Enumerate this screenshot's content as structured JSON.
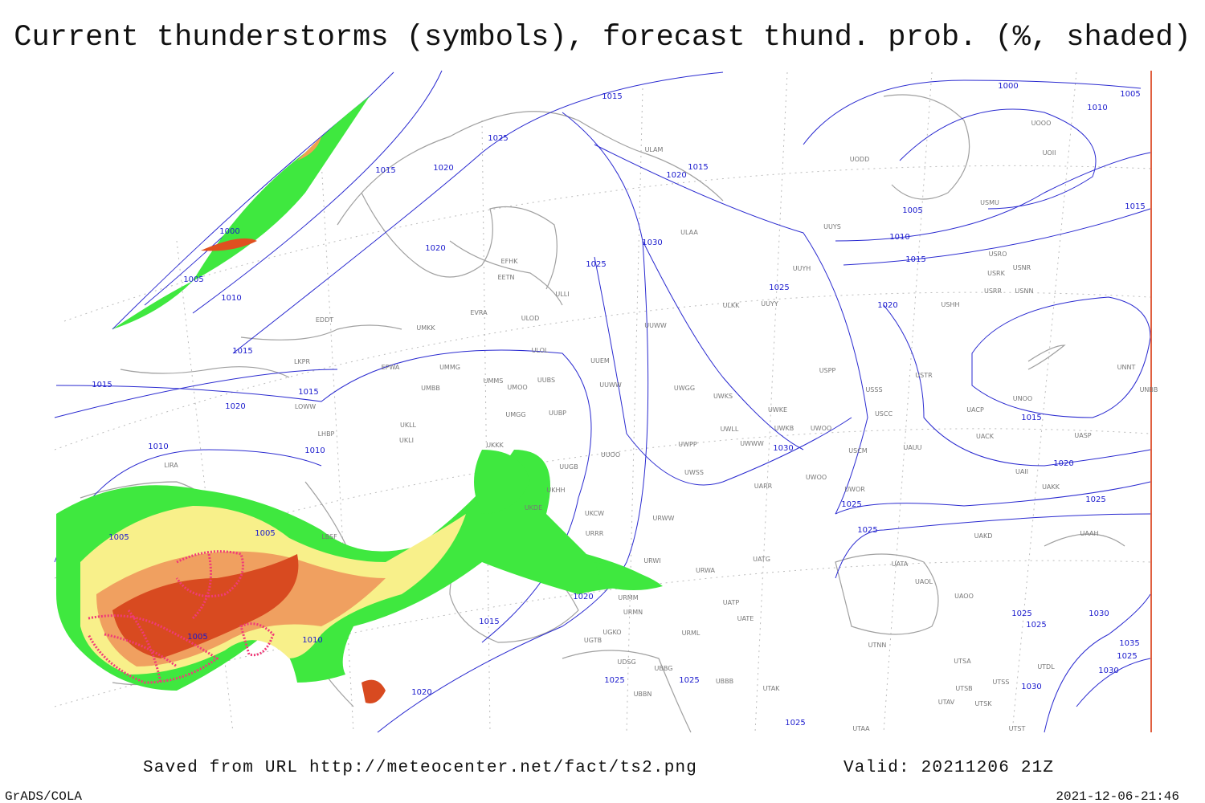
{
  "header": {
    "title": "Current thunderstorms (symbols), forecast thund. prob. (%, shaded)"
  },
  "footer": {
    "source": "Saved from URL http://meteocenter.net/fact/ts2.png",
    "valid": "Valid: 20211206 21Z",
    "software": "GrADS/COLA",
    "timestamp": "2021-12-06-21:46"
  },
  "map": {
    "isobar_labels": [
      1000,
      1005,
      1010,
      1015,
      1025,
      1015,
      1020,
      1020,
      1015,
      1000,
      1020,
      1005,
      1010,
      1030,
      1025,
      1005,
      1010,
      1015,
      1025,
      1020,
      1015,
      1015,
      1015,
      1015,
      1020,
      1010,
      1010,
      1030,
      1015,
      1020,
      1025,
      1025,
      1025,
      1005,
      1005,
      1005,
      1010,
      1020,
      1015,
      1020,
      1025,
      1025,
      1030,
      1025,
      1035,
      1025,
      1030,
      1030,
      1025,
      1025
    ],
    "stations": [
      "ULAM",
      "ULAA",
      "EFHK",
      "EETN",
      "ULLI",
      "EVRA",
      "ULOD",
      "UMKK",
      "EDDT",
      "ULOL",
      "EPWA",
      "UMMG",
      "LKPR",
      "UMMS",
      "UUBS",
      "UMBB",
      "UMOO",
      "LOWW",
      "UMGG",
      "UUBP",
      "UKLL",
      "UKLI",
      "LHBP",
      "UKKK",
      "LIRA",
      "LBSF",
      "UUEM",
      "UUWW",
      "UWGG",
      "UWKS",
      "UWKE",
      "UWLL",
      "UWWW",
      "UWKB",
      "UWOO",
      "UWPP",
      "UUOO",
      "UUGB",
      "UWSS",
      "UARR",
      "UWOO",
      "UWOR",
      "UKHH",
      "UKDE",
      "UKCW",
      "URWW",
      "URRR",
      "URWI",
      "UATG",
      "URWA",
      "UATP",
      "UATE",
      "URMM",
      "URMN",
      "URML",
      "UGKO",
      "UGTB",
      "UDSG",
      "UBBG",
      "UBBB",
      "UTAK",
      "UBBN",
      "UTAA",
      "USPP",
      "USSS",
      "USCC",
      "USCM",
      "UAUU",
      "USTR",
      "UACP",
      "UACK",
      "UASP",
      "UATA",
      "UAOL",
      "UAOO",
      "UAKD",
      "UAKK",
      "UAII",
      "UNOO",
      "UNNT",
      "UNBB",
      "UAAH",
      "UTNN",
      "UTSA",
      "UTSS",
      "UTSB",
      "UTAV",
      "UTSK",
      "UTST",
      "UTDL",
      "UUYS",
      "UUYH",
      "UUYY",
      "ULKK",
      "UUWW",
      "USHH",
      "USRR",
      "USNN",
      "USRK",
      "USNR",
      "USRO",
      "USMU",
      "UODD",
      "UOII",
      "UOOO"
    ]
  }
}
